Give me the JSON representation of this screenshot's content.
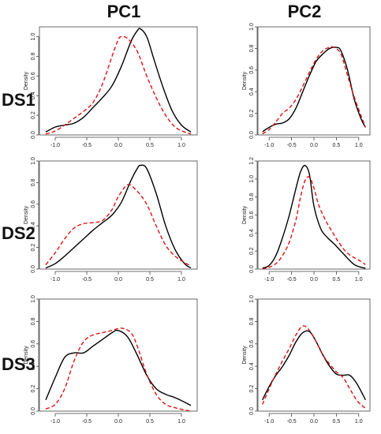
{
  "column_labels": [
    "PC1",
    "PC2"
  ],
  "row_labels": [
    "DS1",
    "DS2",
    "DS3"
  ],
  "colors": {
    "solid": "#000000",
    "dashed": "#e01010"
  },
  "chart_data": [
    {
      "type": "line",
      "row": "DS1",
      "column": "PC1",
      "ylabel": "Density",
      "xlim": [
        -1.25,
        1.25
      ],
      "ylim": [
        0,
        1.1
      ],
      "xticks": [
        -1.0,
        -0.5,
        0.0,
        0.5,
        1.0
      ],
      "xtick_labels": [
        "-1.0",
        "-0.5",
        "0.0",
        "0.5",
        "1.0"
      ],
      "yticks": [
        0,
        0.2,
        0.4,
        0.6,
        0.8,
        1.0
      ],
      "ytick_labels": [
        "0.0",
        "0.2",
        "0.4",
        "0.6",
        "0.8",
        "1.0"
      ],
      "series": [
        {
          "style": "solid",
          "x": [
            -1.15,
            -1.0,
            -0.85,
            -0.7,
            -0.55,
            -0.4,
            -0.25,
            -0.1,
            0.05,
            0.2,
            0.3,
            0.35,
            0.45,
            0.55,
            0.7,
            0.85,
            1.0,
            1.15
          ],
          "y": [
            0.03,
            0.08,
            0.1,
            0.12,
            0.18,
            0.28,
            0.38,
            0.5,
            0.7,
            0.95,
            1.06,
            1.08,
            1.0,
            0.8,
            0.5,
            0.25,
            0.1,
            0.03
          ]
        },
        {
          "style": "dashed",
          "x": [
            -1.15,
            -1.0,
            -0.85,
            -0.7,
            -0.55,
            -0.4,
            -0.25,
            -0.1,
            0.0,
            0.05,
            0.15,
            0.3,
            0.45,
            0.6,
            0.75,
            0.9,
            1.05,
            1.15
          ],
          "y": [
            0.01,
            0.04,
            0.1,
            0.17,
            0.24,
            0.33,
            0.52,
            0.8,
            0.97,
            1.0,
            0.98,
            0.85,
            0.6,
            0.38,
            0.2,
            0.08,
            0.03,
            0.01
          ]
        }
      ]
    },
    {
      "type": "line",
      "row": "DS1",
      "column": "PC2",
      "ylabel": "Density",
      "xlim": [
        -1.25,
        1.25
      ],
      "ylim": [
        0,
        1.0
      ],
      "xticks": [
        -1.0,
        -0.5,
        0.0,
        0.5,
        1.0
      ],
      "xtick_labels": [
        "-1.0",
        "-0.5",
        "0.0",
        "0.5",
        "1.0"
      ],
      "yticks": [
        0,
        0.2,
        0.4,
        0.6,
        0.8,
        1.0
      ],
      "ytick_labels": [
        "0.0",
        "0.2",
        "0.4",
        "0.6",
        "0.8",
        "1.0"
      ],
      "series": [
        {
          "style": "solid",
          "x": [
            -1.15,
            -1.0,
            -0.85,
            -0.7,
            -0.55,
            -0.4,
            -0.25,
            -0.1,
            0.05,
            0.2,
            0.35,
            0.5,
            0.6,
            0.75,
            0.9,
            1.05,
            1.15
          ],
          "y": [
            0.03,
            0.07,
            0.1,
            0.11,
            0.15,
            0.25,
            0.4,
            0.55,
            0.68,
            0.75,
            0.8,
            0.81,
            0.78,
            0.6,
            0.33,
            0.15,
            0.07
          ]
        },
        {
          "style": "dashed",
          "x": [
            -1.15,
            -1.0,
            -0.85,
            -0.7,
            -0.55,
            -0.4,
            -0.25,
            -0.1,
            0.05,
            0.2,
            0.35,
            0.45,
            0.6,
            0.75,
            0.9,
            1.05,
            1.15
          ],
          "y": [
            0.01,
            0.05,
            0.12,
            0.2,
            0.25,
            0.33,
            0.45,
            0.58,
            0.7,
            0.78,
            0.81,
            0.81,
            0.75,
            0.55,
            0.35,
            0.18,
            0.07
          ]
        }
      ]
    },
    {
      "type": "line",
      "row": "DS2",
      "column": "PC1",
      "ylabel": "Density",
      "xlim": [
        -1.25,
        1.25
      ],
      "ylim": [
        0,
        1.0
      ],
      "xticks": [
        -1.0,
        -0.5,
        0.0,
        0.5,
        1.0
      ],
      "xtick_labels": [
        "-1.0",
        "-0.5",
        "0.0",
        "0.5",
        "1.0"
      ],
      "yticks": [
        0,
        0.2,
        0.4,
        0.6,
        0.8,
        1.0
      ],
      "ytick_labels": [
        "0.0",
        "0.2",
        "0.4",
        "0.6",
        "0.8",
        "1.0"
      ],
      "series": [
        {
          "style": "solid",
          "x": [
            -1.15,
            -1.0,
            -0.85,
            -0.7,
            -0.55,
            -0.4,
            -0.25,
            -0.1,
            0.05,
            0.2,
            0.3,
            0.35,
            0.45,
            0.6,
            0.75,
            0.9,
            1.05,
            1.15
          ],
          "y": [
            0.01,
            0.05,
            0.12,
            0.2,
            0.28,
            0.36,
            0.43,
            0.5,
            0.62,
            0.82,
            0.93,
            0.96,
            0.93,
            0.7,
            0.4,
            0.18,
            0.05,
            0.01
          ]
        },
        {
          "style": "dashed",
          "x": [
            -1.15,
            -1.0,
            -0.85,
            -0.7,
            -0.55,
            -0.4,
            -0.25,
            -0.1,
            0.0,
            0.15,
            0.3,
            0.45,
            0.6,
            0.75,
            0.9,
            1.05,
            1.15
          ],
          "y": [
            0.04,
            0.15,
            0.28,
            0.38,
            0.42,
            0.43,
            0.45,
            0.55,
            0.67,
            0.78,
            0.72,
            0.6,
            0.4,
            0.22,
            0.12,
            0.06,
            0.03
          ]
        }
      ]
    },
    {
      "type": "line",
      "row": "DS2",
      "column": "PC2",
      "ylabel": "Density",
      "xlim": [
        -1.25,
        1.25
      ],
      "ylim": [
        0,
        1.2
      ],
      "xticks": [
        -1.0,
        -0.5,
        0.0,
        0.5,
        1.0
      ],
      "xtick_labels": [
        "-1.0",
        "-0.5",
        "0.0",
        "0.5",
        "1.0"
      ],
      "yticks": [
        0,
        0.2,
        0.4,
        0.6,
        0.8,
        1.0,
        1.2
      ],
      "ytick_labels": [
        "0.0",
        "0.2",
        "0.4",
        "0.6",
        "0.8",
        "1.0",
        "1.2"
      ],
      "series": [
        {
          "style": "solid",
          "x": [
            -1.15,
            -1.0,
            -0.85,
            -0.7,
            -0.55,
            -0.4,
            -0.3,
            -0.2,
            -0.1,
            0.0,
            0.15,
            0.3,
            0.45,
            0.6,
            0.75,
            0.9,
            1.05,
            1.15
          ],
          "y": [
            0.01,
            0.04,
            0.15,
            0.35,
            0.6,
            0.9,
            1.08,
            1.15,
            1.05,
            0.7,
            0.45,
            0.35,
            0.28,
            0.2,
            0.12,
            0.05,
            0.02,
            0.01
          ]
        },
        {
          "style": "dashed",
          "x": [
            -1.15,
            -1.0,
            -0.85,
            -0.7,
            -0.55,
            -0.4,
            -0.3,
            -0.2,
            -0.1,
            0.0,
            0.1,
            0.25,
            0.4,
            0.55,
            0.7,
            0.85,
            1.0,
            1.15
          ],
          "y": [
            0.0,
            0.02,
            0.06,
            0.15,
            0.3,
            0.55,
            0.8,
            0.98,
            1.02,
            0.9,
            0.72,
            0.55,
            0.42,
            0.3,
            0.2,
            0.14,
            0.1,
            0.05
          ]
        }
      ]
    },
    {
      "type": "line",
      "row": "DS3",
      "column": "PC1",
      "ylabel": "Density",
      "xlim": [
        -1.25,
        1.25
      ],
      "ylim": [
        0,
        1.0
      ],
      "xticks": [
        -1.0,
        -0.5,
        0.0,
        0.5,
        1.0
      ],
      "xtick_labels": [
        "-1.0",
        "-0.5",
        "0.0",
        "0.5",
        "1.0"
      ],
      "yticks": [
        0,
        0.2,
        0.4,
        0.6,
        0.8,
        1.0
      ],
      "ytick_labels": [
        "0.0",
        "0.2",
        "0.4",
        "0.6",
        "0.8",
        "1.0"
      ],
      "series": [
        {
          "style": "solid",
          "x": [
            -1.15,
            -1.0,
            -0.85,
            -0.7,
            -0.55,
            -0.4,
            -0.25,
            -0.1,
            0.0,
            0.15,
            0.3,
            0.45,
            0.6,
            0.75,
            0.9,
            1.05,
            1.15
          ],
          "y": [
            0.1,
            0.3,
            0.48,
            0.52,
            0.52,
            0.58,
            0.64,
            0.7,
            0.72,
            0.66,
            0.5,
            0.32,
            0.2,
            0.15,
            0.12,
            0.08,
            0.05
          ]
        },
        {
          "style": "dashed",
          "x": [
            -1.15,
            -1.0,
            -0.85,
            -0.7,
            -0.55,
            -0.4,
            -0.25,
            -0.1,
            0.05,
            0.2,
            0.3,
            0.45,
            0.6,
            0.75,
            0.9,
            1.05,
            1.15
          ],
          "y": [
            0.02,
            0.06,
            0.2,
            0.45,
            0.62,
            0.68,
            0.7,
            0.72,
            0.74,
            0.7,
            0.58,
            0.33,
            0.15,
            0.06,
            0.03,
            0.01,
            0.0
          ]
        }
      ]
    },
    {
      "type": "line",
      "row": "DS3",
      "column": "PC2",
      "ylabel": "Density",
      "xlim": [
        -1.25,
        1.25
      ],
      "ylim": [
        0,
        1.0
      ],
      "xticks": [
        -1.0,
        -0.5,
        0.0,
        0.5,
        1.0
      ],
      "xtick_labels": [
        "-1.0",
        "-0.5",
        "0.0",
        "0.5",
        "1.0"
      ],
      "yticks": [
        0,
        0.2,
        0.4,
        0.6,
        0.8,
        1.0
      ],
      "ytick_labels": [
        "0.0",
        "0.2",
        "0.4",
        "0.6",
        "0.8",
        "1.0"
      ],
      "series": [
        {
          "style": "solid",
          "x": [
            -1.15,
            -1.0,
            -0.85,
            -0.7,
            -0.55,
            -0.4,
            -0.25,
            -0.1,
            0.05,
            0.2,
            0.35,
            0.5,
            0.65,
            0.8,
            0.95,
            1.1,
            1.15
          ],
          "y": [
            0.1,
            0.22,
            0.32,
            0.4,
            0.5,
            0.62,
            0.7,
            0.71,
            0.62,
            0.5,
            0.4,
            0.33,
            0.32,
            0.32,
            0.25,
            0.14,
            0.1
          ]
        },
        {
          "style": "dashed",
          "x": [
            -1.15,
            -1.0,
            -0.85,
            -0.7,
            -0.55,
            -0.4,
            -0.25,
            -0.1,
            0.05,
            0.2,
            0.35,
            0.5,
            0.65,
            0.8,
            0.95,
            1.1,
            1.15
          ],
          "y": [
            0.06,
            0.2,
            0.33,
            0.45,
            0.56,
            0.68,
            0.76,
            0.72,
            0.62,
            0.5,
            0.42,
            0.35,
            0.3,
            0.2,
            0.1,
            0.04,
            0.03
          ]
        }
      ]
    }
  ]
}
